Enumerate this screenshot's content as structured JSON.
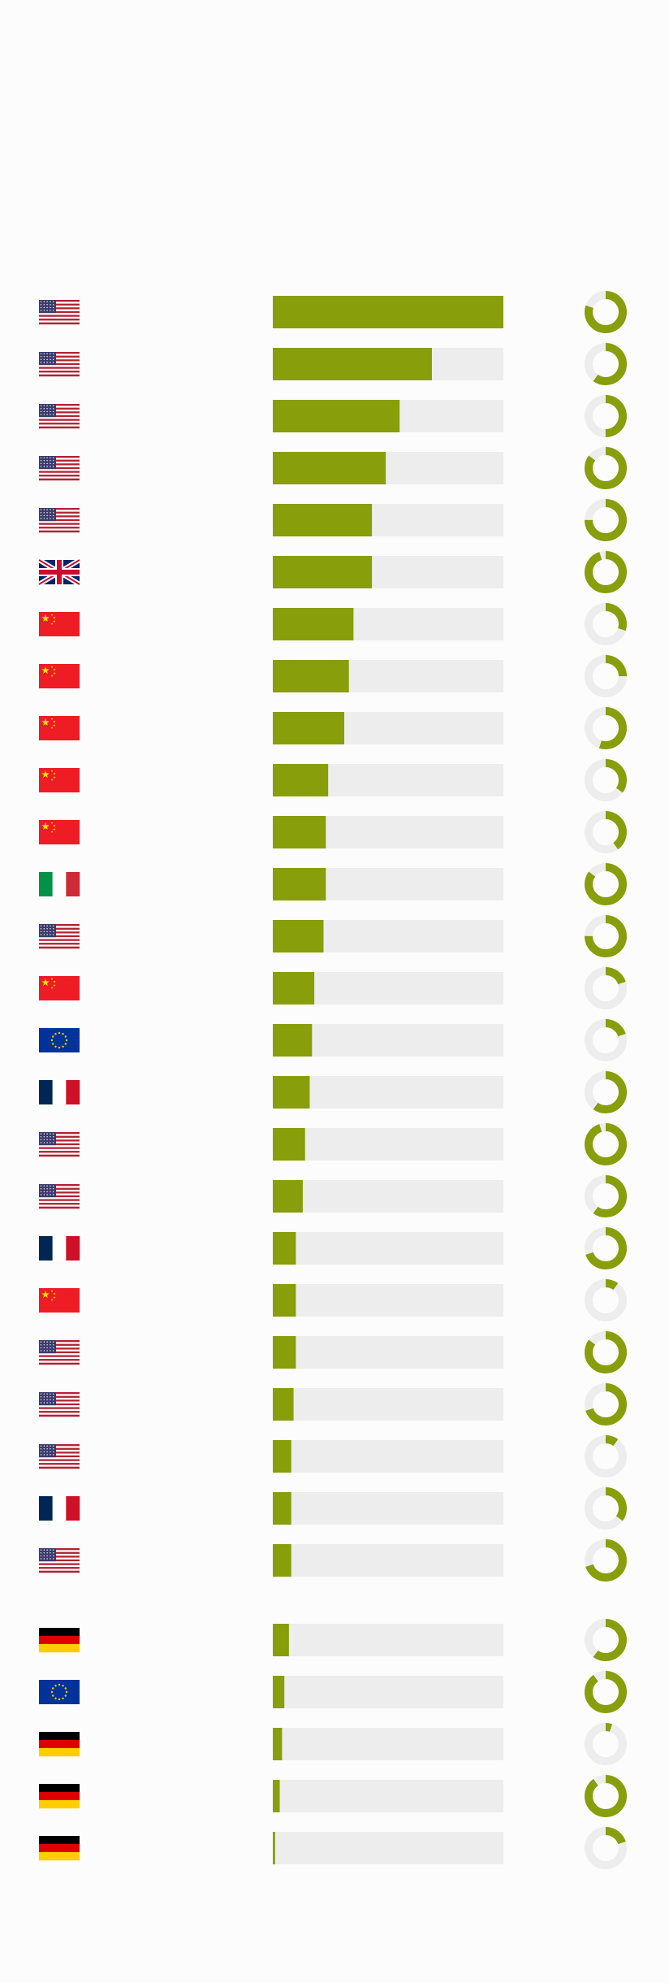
{
  "colors": {
    "accent": "#889e0a",
    "track": "#ededed",
    "background": "#fcfcfc"
  },
  "flag_icons": {
    "us": "us-flag-icon",
    "uk": "uk-flag-icon",
    "cn": "china-flag-icon",
    "it": "italy-flag-icon",
    "eu": "eu-flag-icon",
    "fr": "france-flag-icon",
    "de": "germany-flag-icon"
  },
  "chart_data": {
    "type": "bar",
    "orientation": "horizontal",
    "title": "",
    "xlabel": "",
    "ylabel": "",
    "xlim": [
      0,
      100
    ],
    "grid": false,
    "legend": "none",
    "groups": [
      {
        "rows": [
          {
            "flag": "us",
            "value": 100,
            "ring": 0.8
          },
          {
            "flag": "us",
            "value": 69,
            "ring": 0.6
          },
          {
            "flag": "us",
            "value": 55,
            "ring": 0.5
          },
          {
            "flag": "us",
            "value": 49,
            "ring": 0.85
          },
          {
            "flag": "us",
            "value": 43,
            "ring": 0.75
          },
          {
            "flag": "uk",
            "value": 43,
            "ring": 0.95
          },
          {
            "flag": "cn",
            "value": 35,
            "ring": 0.3
          },
          {
            "flag": "cn",
            "value": 33,
            "ring": 0.25
          },
          {
            "flag": "cn",
            "value": 31,
            "ring": 0.55
          },
          {
            "flag": "cn",
            "value": 24,
            "ring": 0.35
          },
          {
            "flag": "cn",
            "value": 23,
            "ring": 0.4
          },
          {
            "flag": "it",
            "value": 23,
            "ring": 0.85
          },
          {
            "flag": "us",
            "value": 22,
            "ring": 0.75
          },
          {
            "flag": "cn",
            "value": 18,
            "ring": 0.2
          },
          {
            "flag": "eu",
            "value": 17,
            "ring": 0.2
          },
          {
            "flag": "fr",
            "value": 16,
            "ring": 0.6
          },
          {
            "flag": "us",
            "value": 14,
            "ring": 0.95
          },
          {
            "flag": "us",
            "value": 13,
            "ring": 0.6
          },
          {
            "flag": "fr",
            "value": 10,
            "ring": 0.7
          },
          {
            "flag": "cn",
            "value": 10,
            "ring": 0.1
          },
          {
            "flag": "us",
            "value": 10,
            "ring": 0.85
          },
          {
            "flag": "us",
            "value": 9,
            "ring": 0.7
          },
          {
            "flag": "us",
            "value": 8,
            "ring": 0.1
          },
          {
            "flag": "fr",
            "value": 8,
            "ring": 0.35
          },
          {
            "flag": "us",
            "value": 8,
            "ring": 0.7
          }
        ]
      },
      {
        "rows": [
          {
            "flag": "de",
            "value": 7,
            "ring": 0.6
          },
          {
            "flag": "eu",
            "value": 5,
            "ring": 0.9
          },
          {
            "flag": "de",
            "value": 4,
            "ring": 0.05
          },
          {
            "flag": "de",
            "value": 3,
            "ring": 0.9
          },
          {
            "flag": "de",
            "value": 1,
            "ring": 0.2
          }
        ]
      }
    ]
  }
}
